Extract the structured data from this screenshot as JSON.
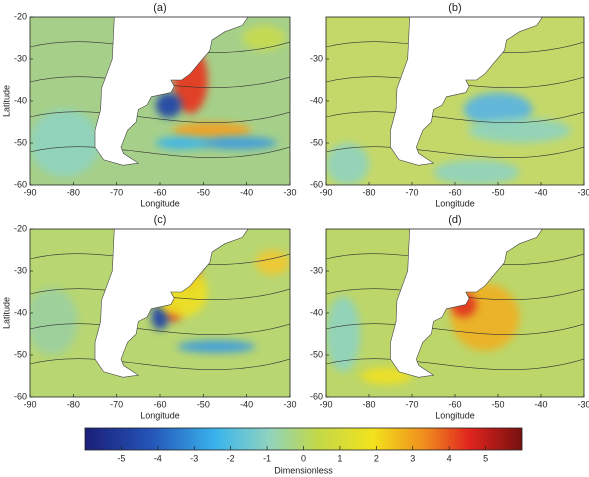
{
  "panels": [
    {
      "label": "(a)",
      "xlabel": "Longitude",
      "ylabel": "Latitude",
      "xlim": [
        -90,
        -30
      ],
      "ylim": [
        -60,
        -20
      ],
      "xticks": [
        -90,
        -80,
        -70,
        -60,
        -50,
        -40,
        -30
      ],
      "yticks": [
        -60,
        -50,
        -40,
        -30,
        -20
      ]
    },
    {
      "label": "(b)",
      "xlabel": "Longitude",
      "xlim": [
        -90,
        -30
      ],
      "ylim": [
        -60,
        -20
      ],
      "xticks": [
        -90,
        -80,
        -70,
        -60,
        -50,
        -40,
        -30
      ],
      "yticks": [
        -60,
        -50,
        -40,
        -30
      ]
    },
    {
      "label": "(c)",
      "xlabel": "Longitude",
      "ylabel": "Latitude",
      "xlim": [
        -90,
        -30
      ],
      "ylim": [
        -60,
        -20
      ],
      "xticks": [
        -90,
        -80,
        -70,
        -60,
        -50,
        -40,
        -30
      ],
      "yticks": [
        -60,
        -50,
        -40,
        -30,
        -20
      ]
    },
    {
      "label": "(d)",
      "xlabel": "Longitude",
      "xlim": [
        -90,
        -30
      ],
      "ylim": [
        -60,
        -20
      ],
      "xticks": [
        -90,
        -80,
        -70,
        -60,
        -50,
        -40,
        -30
      ],
      "yticks": [
        -60,
        -50,
        -40,
        -30
      ]
    }
  ],
  "colorbar": {
    "label": "Dimensionless",
    "clim": [
      -6,
      6
    ],
    "ticks": [
      -5,
      -4,
      -3,
      -2,
      -1,
      0,
      1,
      2,
      3,
      4,
      5
    ]
  }
}
